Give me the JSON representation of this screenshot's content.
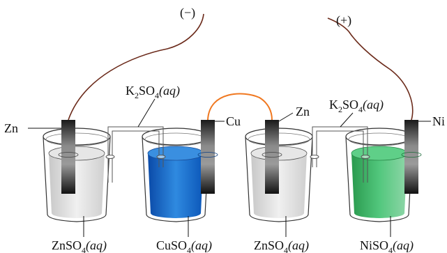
{
  "terminals": {
    "negative": "(−)",
    "positive": "(+)"
  },
  "electrodes": {
    "left_zn": "Zn",
    "cu": "Cu",
    "mid_zn": "Zn",
    "ni": "Ni"
  },
  "salt_bridges": {
    "left": {
      "formula_base": "K",
      "sub1": "2",
      "mid": "SO",
      "sub2": "4",
      "state": "(aq)"
    },
    "right": {
      "formula_base": "K",
      "sub1": "2",
      "mid": "SO",
      "sub2": "4",
      "state": "(aq)"
    }
  },
  "solutions": [
    {
      "base": "ZnSO",
      "sub": "4",
      "state": "(aq)"
    },
    {
      "base": "CuSO",
      "sub": "4",
      "state": "(aq)"
    },
    {
      "base": "ZnSO",
      "sub": "4",
      "state": "(aq)"
    },
    {
      "base": "NiSO",
      "sub": "4",
      "state": "(aq)"
    }
  ],
  "colors": {
    "zn_solution": "#d9d9d9",
    "cu_solution": "#1e66c8",
    "ni_solution": "#3db86a",
    "wire_brown": "#6b2a1a",
    "wire_orange": "#f07820",
    "electrode_dark": "#222222"
  }
}
